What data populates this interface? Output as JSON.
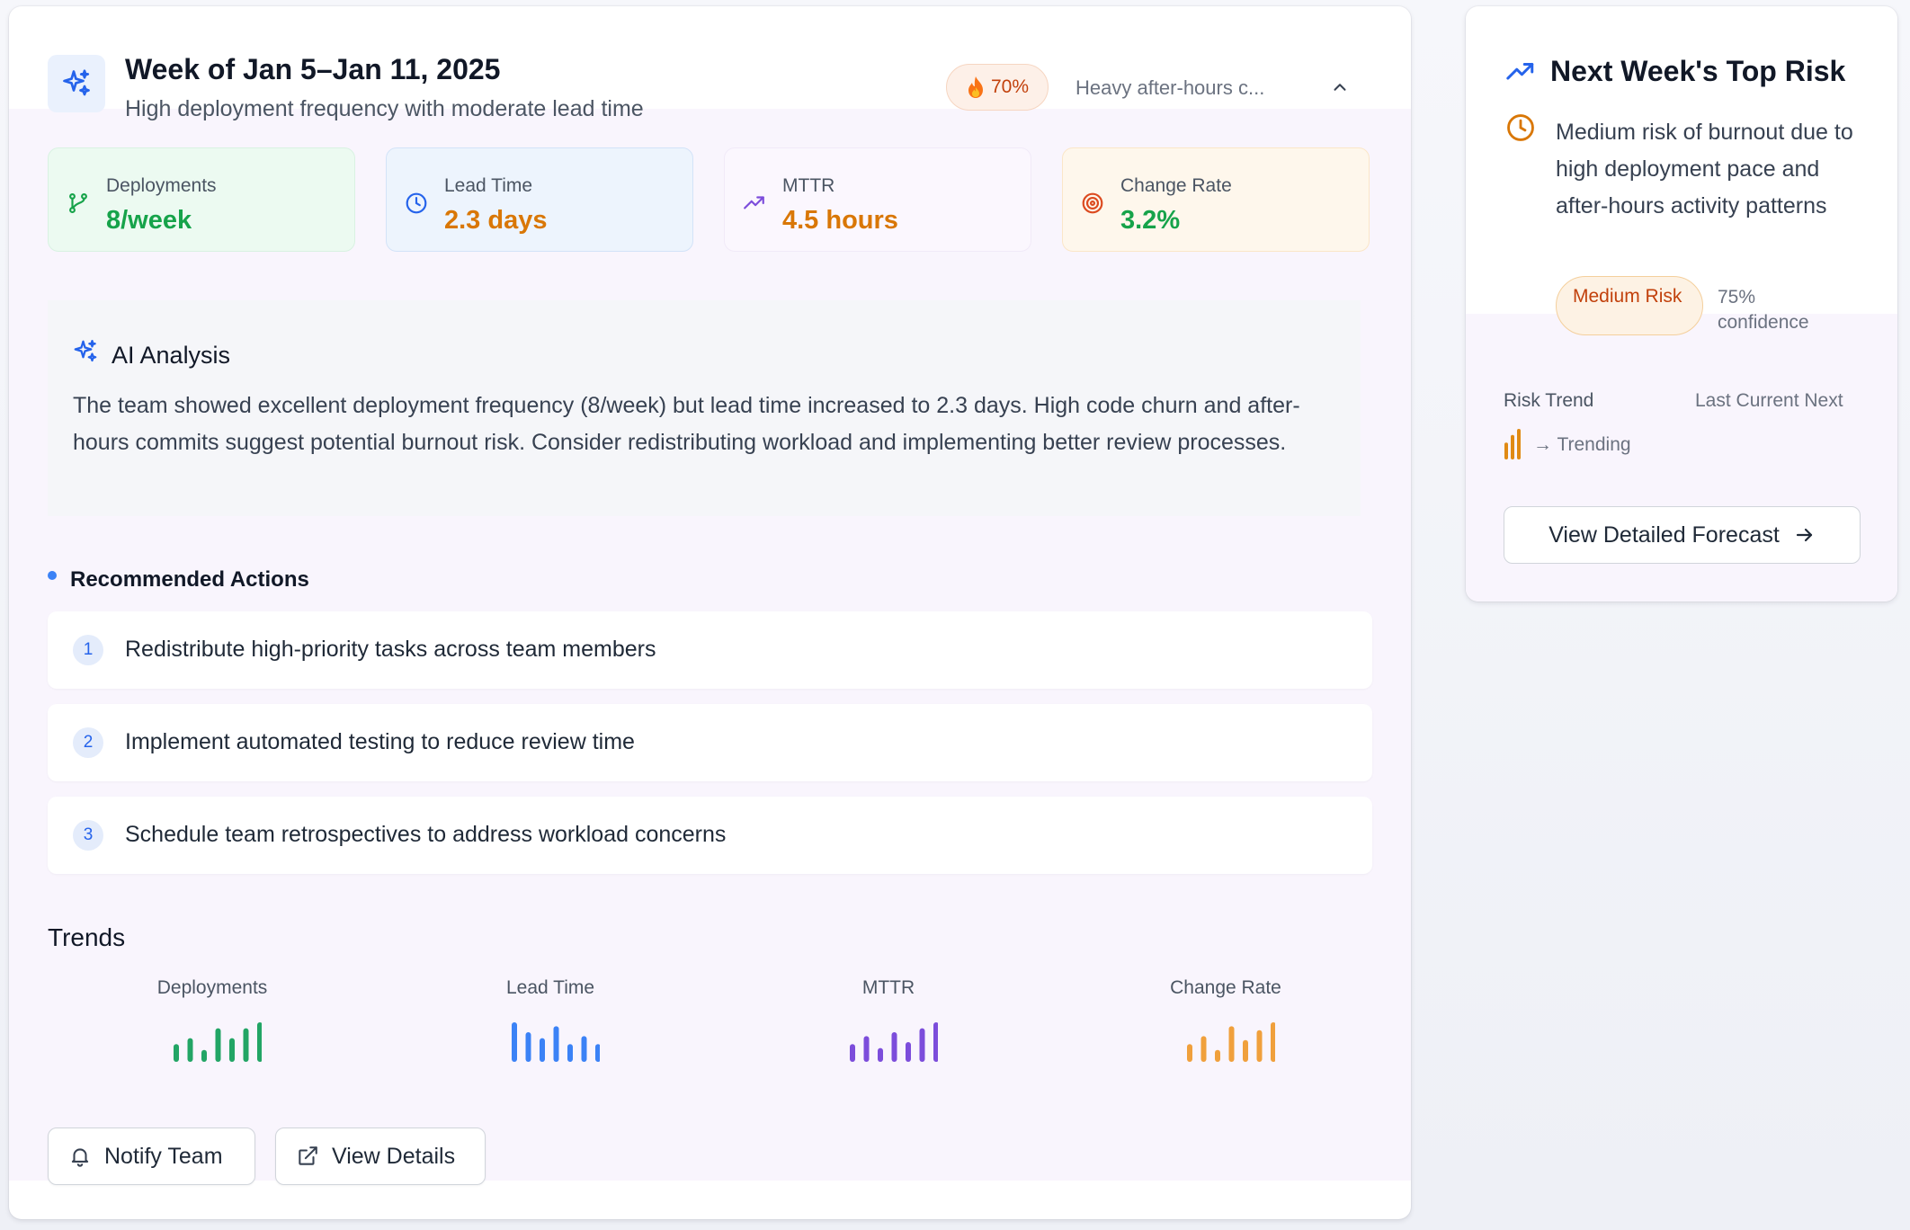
{
  "header": {
    "title": "Week of Jan 5–Jan 11, 2025",
    "subtitle": "High deployment frequency with moderate lead time",
    "risk_score": "70%",
    "alert_text": "Heavy after-hours c..."
  },
  "metrics": [
    {
      "label": "Deployments",
      "value": "8/week",
      "color": "#16a34a",
      "icon": "git-branch-icon"
    },
    {
      "label": "Lead Time",
      "value": "2.3 days",
      "color": "#d97706",
      "icon": "clock-icon"
    },
    {
      "label": "MTTR",
      "value": "4.5 hours",
      "color": "#d97706",
      "icon": "trending-up-icon"
    },
    {
      "label": "Change Rate",
      "value": "3.2%",
      "color": "#16a34a",
      "icon": "target-icon"
    }
  ],
  "analysis": {
    "title": "AI Analysis",
    "text": "The team showed excellent deployment frequency (8/week) but lead time increased to 2.3 days. High code churn and after-hours commits suggest potential burnout risk. Consider redistributing workload and implementing better review processes."
  },
  "recommendations": {
    "title": "Recommended Actions",
    "items": [
      {
        "number": "1",
        "text": "Redistribute high-priority tasks across team members"
      },
      {
        "number": "2",
        "text": "Implement automated testing to reduce review time"
      },
      {
        "number": "3",
        "text": "Schedule team retrospectives to address workload concerns"
      }
    ]
  },
  "trends": {
    "title": "Trends",
    "items": [
      {
        "label": "Deployments",
        "color": "#22a565",
        "values": [
          0.45,
          0.6,
          0.3,
          0.85,
          0.6,
          0.85,
          1.0
        ]
      },
      {
        "label": "Lead Time",
        "color": "#3b82f6",
        "values": [
          1.0,
          0.75,
          0.6,
          0.9,
          0.45,
          0.65,
          0.45
        ]
      },
      {
        "label": "MTTR",
        "color": "#7c4ddb",
        "values": [
          0.45,
          0.65,
          0.35,
          0.75,
          0.5,
          0.85,
          1.0
        ]
      },
      {
        "label": "Change Rate",
        "color": "#f0a03c",
        "values": [
          0.45,
          0.65,
          0.3,
          0.9,
          0.55,
          0.8,
          1.0
        ]
      }
    ]
  },
  "actions": {
    "notify_label": "Notify Team",
    "details_label": "View Details"
  },
  "side_panel": {
    "title": "Next Week's Top Risk",
    "description": "Medium risk of burnout due to high deployment pace and after-hours activity patterns",
    "badge": "Medium Risk",
    "confidence": "75% confidence",
    "risk_trend_label": "Risk Trend",
    "periods": "Last Current Next",
    "trending_text": "→ Trending",
    "mini_bar_values": [
      0.55,
      0.8,
      1.0
    ],
    "forecast_button": "View Detailed Forecast"
  },
  "colors": {
    "accent": "#2563eb",
    "green": "#16a34a",
    "amber": "#d97706",
    "purple": "#7c4ddb"
  }
}
